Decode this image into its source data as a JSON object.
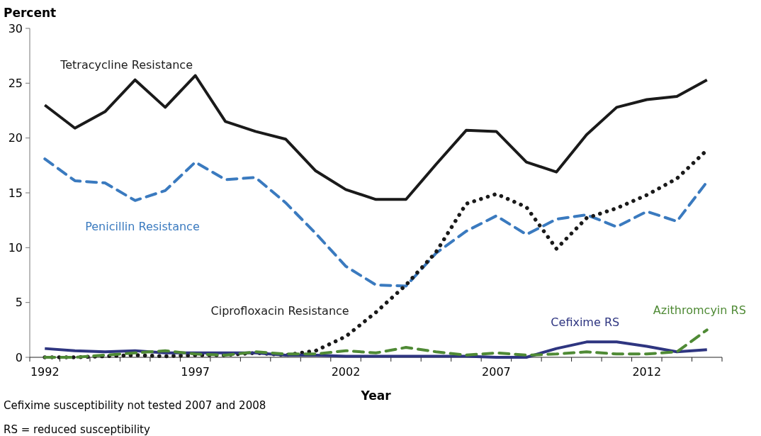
{
  "chart_data": {
    "type": "line",
    "ylabel": "Percent",
    "xlabel": "Year",
    "categories": [
      "1992",
      null,
      null,
      null,
      null,
      "1997",
      null,
      null,
      null,
      null,
      "2002",
      null,
      null,
      null,
      null,
      "2007",
      null,
      null,
      null,
      null,
      "2012",
      null,
      null
    ],
    "ylim": [
      0,
      30
    ],
    "yticks": [
      0,
      5,
      10,
      15,
      20,
      25,
      30
    ],
    "grid": false,
    "legend": false,
    "series": [
      {
        "name": "Tetracycline Resistance",
        "color": "#1a1a1a",
        "line_style": "solid",
        "values": [
          23.0,
          20.9,
          22.4,
          25.3,
          22.8,
          25.7,
          21.5,
          20.6,
          19.9,
          17.0,
          15.3,
          14.4,
          14.4,
          17.6,
          20.7,
          20.6,
          17.8,
          16.9,
          20.3,
          22.8,
          23.5,
          23.8,
          25.3
        ]
      },
      {
        "name": "Penicillin Resistance",
        "color": "#3a7abf",
        "line_style": "dashed",
        "values": [
          18.1,
          16.1,
          15.9,
          14.3,
          15.2,
          17.8,
          16.2,
          16.4,
          14.1,
          11.3,
          8.3,
          6.6,
          6.5,
          9.5,
          11.5,
          12.9,
          11.2,
          12.6,
          13.0,
          11.9,
          13.3,
          12.4,
          16.0
        ]
      },
      {
        "name": "Ciprofloxacin Resistance",
        "color": "#1a1a1a",
        "line_style": "dotted",
        "values": [
          0.0,
          0.0,
          0.1,
          0.2,
          0.1,
          0.2,
          0.2,
          0.4,
          0.2,
          0.6,
          1.9,
          4.1,
          6.6,
          9.6,
          14.0,
          14.9,
          13.7,
          9.9,
          12.7,
          13.6,
          14.8,
          16.3,
          18.9
        ]
      },
      {
        "name": "Cefixime RS",
        "color": "#2e3580",
        "line_style": "solid",
        "values": [
          0.8,
          0.6,
          0.5,
          0.6,
          0.4,
          0.4,
          0.4,
          0.4,
          0.2,
          0.2,
          0.1,
          0.1,
          0.1,
          0.1,
          0.1,
          0.0,
          0.0,
          0.8,
          1.4,
          1.4,
          1.0,
          0.5,
          0.7
        ]
      },
      {
        "name": "Azithromcyin RS",
        "color": "#4f8a35",
        "line_style": "dashed",
        "values": [
          0.0,
          0.0,
          0.2,
          0.4,
          0.6,
          0.3,
          0.2,
          0.5,
          0.3,
          0.3,
          0.6,
          0.4,
          0.9,
          0.5,
          0.2,
          0.4,
          0.2,
          0.3,
          0.5,
          0.3,
          0.3,
          0.5,
          2.5
        ]
      }
    ],
    "annotations": [
      "Cefixime susceptibility not tested 2007 and 2008",
      "RS = reduced susceptibility"
    ]
  }
}
